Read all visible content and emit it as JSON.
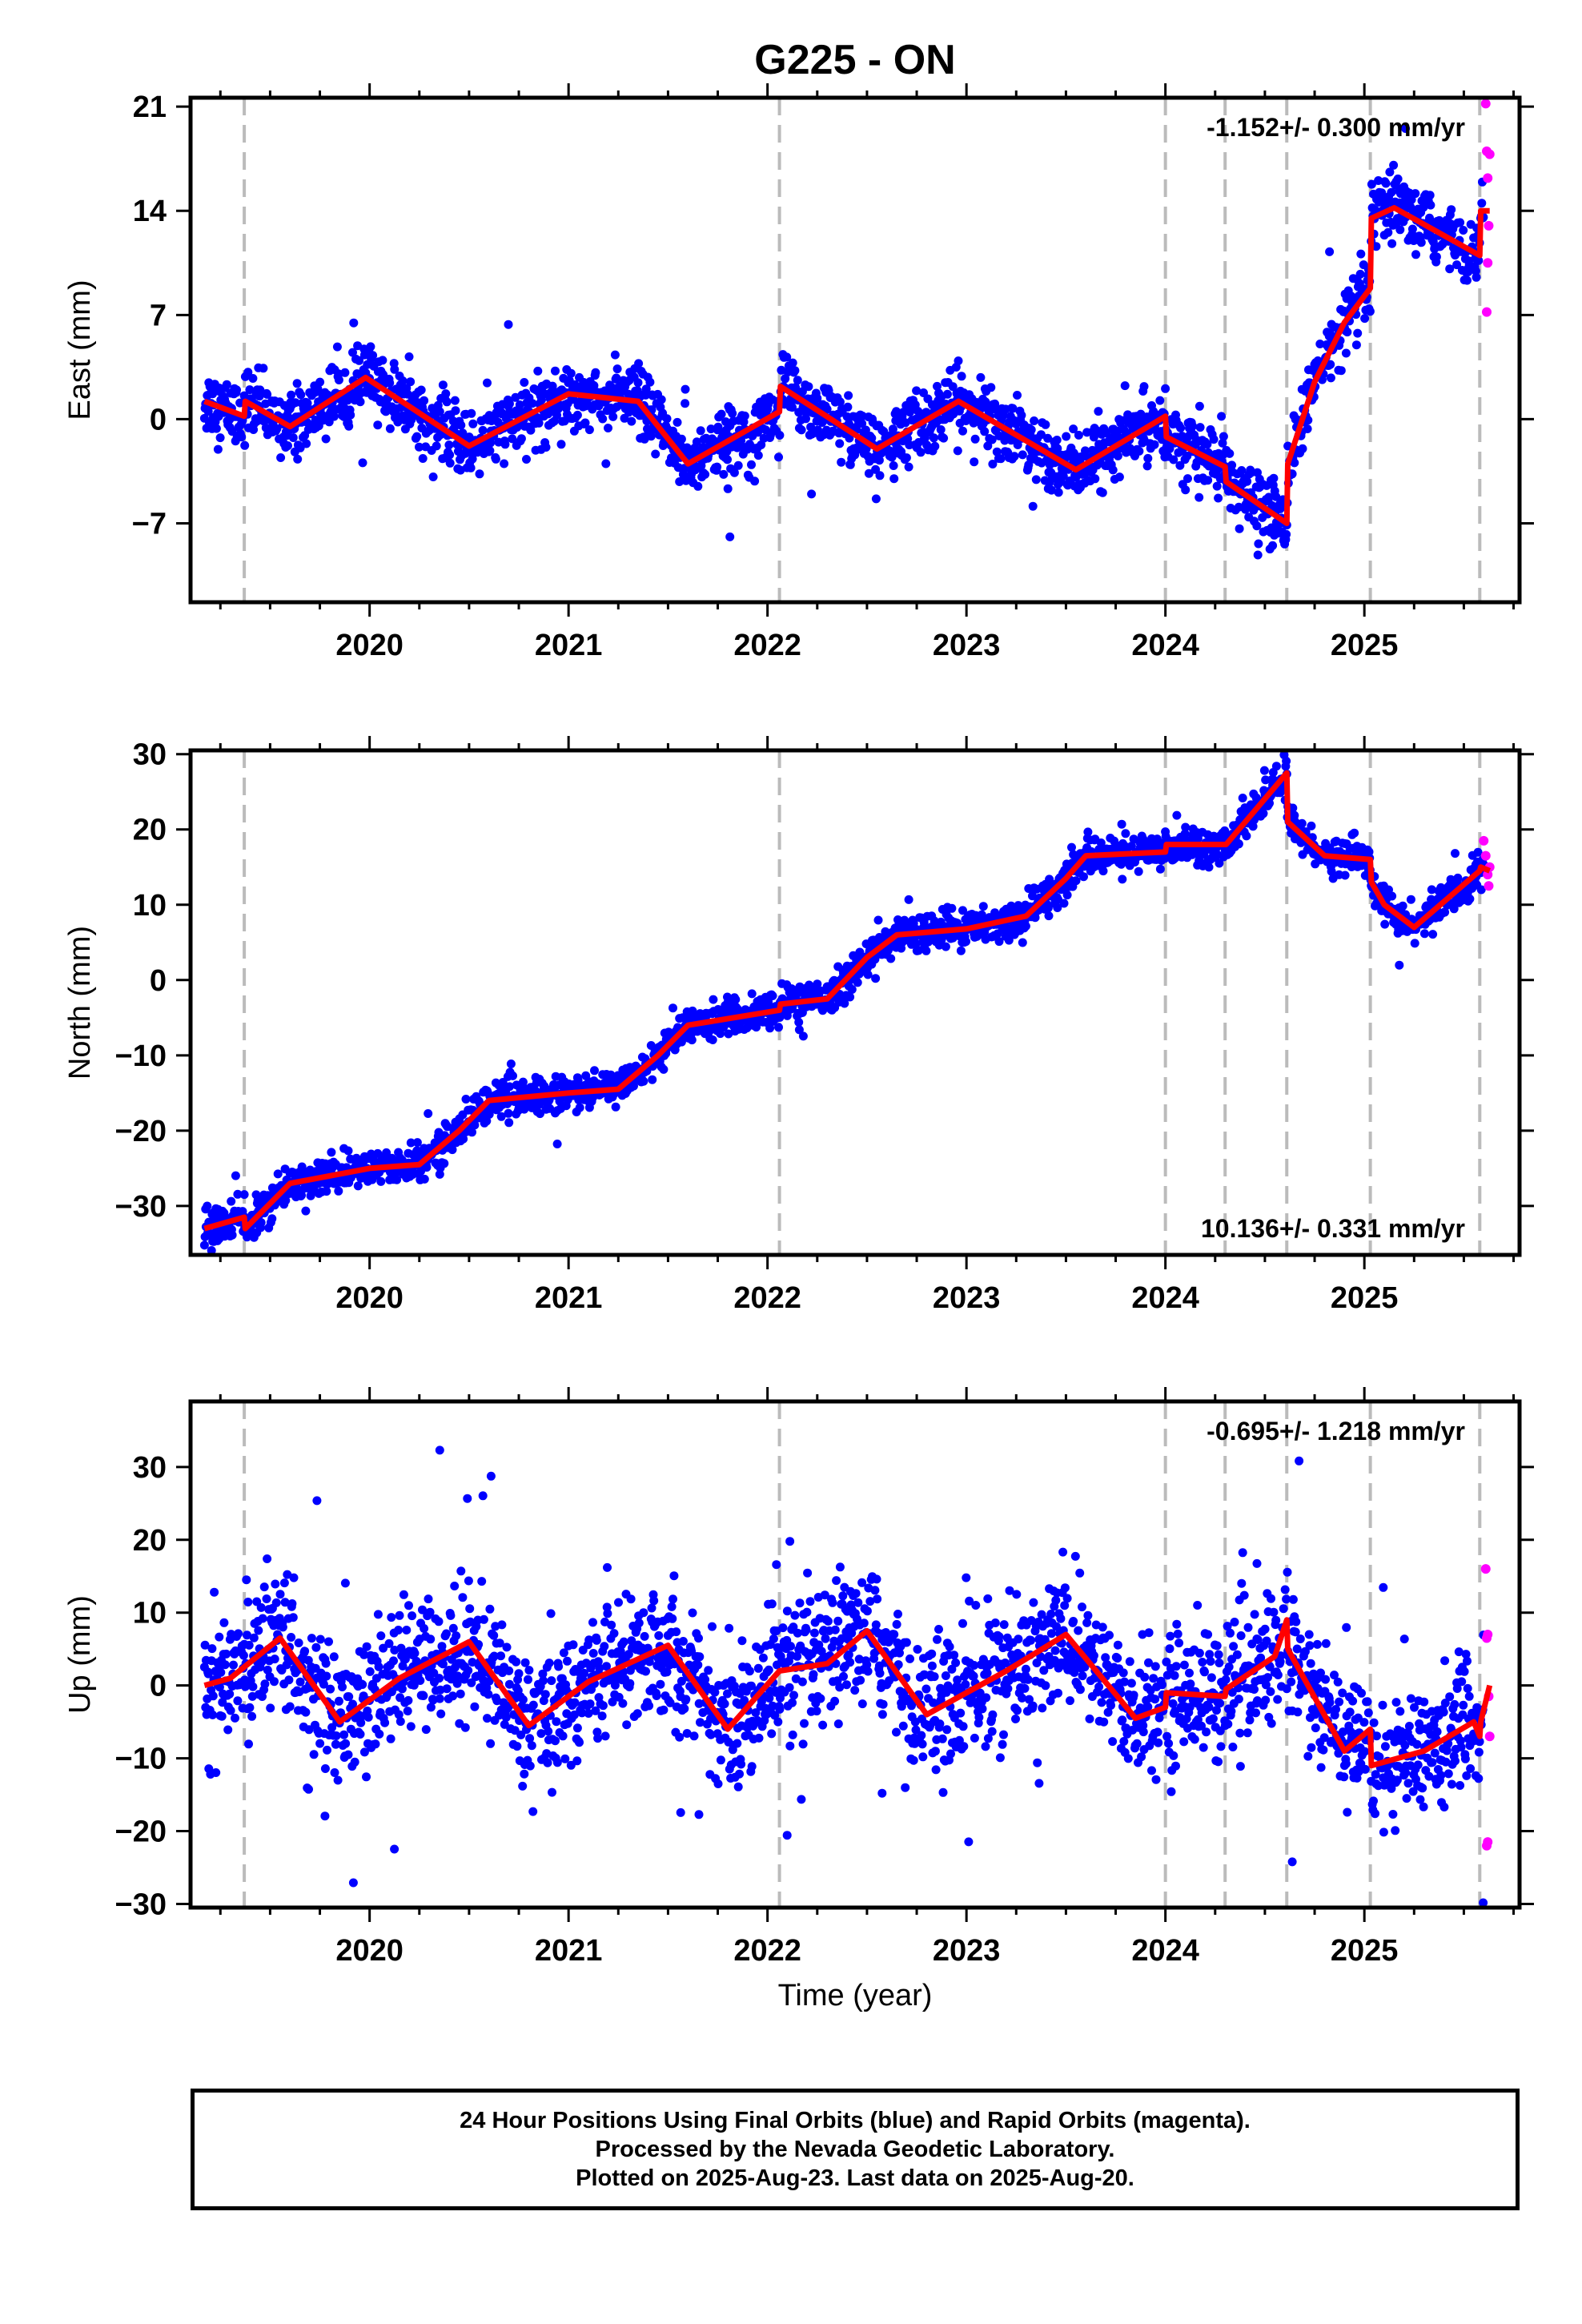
{
  "title": "G225 - ON",
  "xlabel": "Time (year)",
  "colors": {
    "final_orbits": "#0000ff",
    "rapid_orbits": "#ff00ff",
    "model": "#ff0000",
    "event_lines": "#bbbbbb"
  },
  "footer": {
    "line1": "24 Hour Positions Using Final Orbits (blue) and Rapid Orbits (magenta).",
    "line2": "Processed by the Nevada Geodetic Laboratory.",
    "line3": "Plotted on 2025-Aug-23. Last data on 2025-Aug-20."
  },
  "chart_data": [
    {
      "type": "scatter",
      "name": "east",
      "ylabel": "East (mm)",
      "rate_label": "-1.152+/- 0.300 mm/yr",
      "rate_position": "top-right",
      "xlim": [
        2019.1,
        2025.78
      ],
      "ylim": [
        -12.3,
        21.6
      ],
      "xticks": [
        2020,
        2021,
        2022,
        2023,
        2024,
        2025
      ],
      "yticks": [
        -7,
        0,
        7,
        14,
        21
      ],
      "event_lines": [
        2019.37,
        2022.06,
        2024.0,
        2024.3,
        2024.61,
        2025.03,
        2025.58
      ],
      "model_series": [
        [
          2019.17,
          1.2
        ],
        [
          2019.37,
          0.2
        ],
        [
          2019.375,
          1.2
        ],
        [
          2019.6,
          -0.5
        ],
        [
          2019.98,
          2.8
        ],
        [
          2020.5,
          -1.8
        ],
        [
          2021.0,
          1.7
        ],
        [
          2021.35,
          1.2
        ],
        [
          2021.6,
          -3.0
        ],
        [
          2022.06,
          0.5
        ],
        [
          2022.065,
          2.2
        ],
        [
          2022.55,
          -2.0
        ],
        [
          2022.96,
          1.2
        ],
        [
          2023.55,
          -3.4
        ],
        [
          2024.0,
          0.2
        ],
        [
          2024.005,
          -1.2
        ],
        [
          2024.3,
          -3.2
        ],
        [
          2024.305,
          -4.2
        ],
        [
          2024.61,
          -7.0
        ],
        [
          2024.615,
          -3.0
        ],
        [
          2024.75,
          2.5
        ],
        [
          2024.9,
          6.5
        ],
        [
          2025.03,
          8.8
        ],
        [
          2025.035,
          13.5
        ],
        [
          2025.15,
          14.2
        ],
        [
          2025.58,
          11.0
        ],
        [
          2025.585,
          14.0
        ],
        [
          2025.63,
          14.0
        ]
      ],
      "rapid_points": [
        [
          2025.61,
          21.2
        ],
        [
          2025.615,
          18.0
        ],
        [
          2025.62,
          16.2
        ],
        [
          2025.625,
          13.0
        ],
        [
          2025.62,
          10.5
        ],
        [
          2025.615,
          7.2
        ],
        [
          2025.63,
          17.8
        ]
      ],
      "noise_mm": 1.1,
      "outlier_count": 10
    },
    {
      "type": "scatter",
      "name": "north",
      "ylabel": "North (mm)",
      "rate_label": "10.136+/- 0.331 mm/yr",
      "rate_position": "bottom-right",
      "xlim": [
        2019.1,
        2025.78
      ],
      "ylim": [
        -36.5,
        30.5
      ],
      "xticks": [
        2020,
        2021,
        2022,
        2023,
        2024,
        2025
      ],
      "yticks": [
        -30,
        -20,
        -10,
        0,
        10,
        20,
        30
      ],
      "event_lines": [
        2019.37,
        2022.06,
        2024.0,
        2024.3,
        2024.61,
        2025.03,
        2025.58
      ],
      "model_series": [
        [
          2019.17,
          -33.0
        ],
        [
          2019.37,
          -31.5
        ],
        [
          2019.375,
          -33.0
        ],
        [
          2019.6,
          -27.0
        ],
        [
          2019.8,
          -26.0
        ],
        [
          2020.0,
          -25.0
        ],
        [
          2020.25,
          -24.5
        ],
        [
          2020.45,
          -20.0
        ],
        [
          2020.6,
          -16.0
        ],
        [
          2021.0,
          -15.0
        ],
        [
          2021.25,
          -14.5
        ],
        [
          2021.45,
          -10.0
        ],
        [
          2021.6,
          -6.0
        ],
        [
          2022.06,
          -4.0
        ],
        [
          2022.065,
          -3.2
        ],
        [
          2022.3,
          -2.5
        ],
        [
          2022.5,
          3.0
        ],
        [
          2022.65,
          6.0
        ],
        [
          2023.0,
          6.8
        ],
        [
          2023.3,
          8.5
        ],
        [
          2023.5,
          13.5
        ],
        [
          2023.6,
          16.5
        ],
        [
          2024.0,
          17.0
        ],
        [
          2024.005,
          18.0
        ],
        [
          2024.3,
          18.0
        ],
        [
          2024.305,
          18.0
        ],
        [
          2024.61,
          27.5
        ],
        [
          2024.615,
          21.0
        ],
        [
          2024.8,
          16.5
        ],
        [
          2025.03,
          16.0
        ],
        [
          2025.035,
          13.0
        ],
        [
          2025.1,
          10.0
        ],
        [
          2025.25,
          7.0
        ],
        [
          2025.58,
          14.5
        ],
        [
          2025.585,
          15.0
        ],
        [
          2025.63,
          14.5
        ]
      ],
      "rapid_points": [
        [
          2025.6,
          18.5
        ],
        [
          2025.61,
          16.5
        ],
        [
          2025.62,
          14.0
        ],
        [
          2025.625,
          12.5
        ],
        [
          2025.63,
          15.0
        ]
      ],
      "noise_mm": 1.2,
      "outlier_count": 6
    },
    {
      "type": "scatter",
      "name": "up",
      "ylabel": "Up (mm)",
      "rate_label": "-0.695+/- 1.218 mm/yr",
      "rate_position": "top-right",
      "xlim": [
        2019.1,
        2025.78
      ],
      "ylim": [
        -30.5,
        39.0
      ],
      "xticks": [
        2020,
        2021,
        2022,
        2023,
        2024,
        2025
      ],
      "yticks": [
        -30,
        -20,
        -10,
        0,
        10,
        20,
        30
      ],
      "event_lines": [
        2019.37,
        2022.06,
        2024.0,
        2024.3,
        2024.61,
        2025.03,
        2025.58
      ],
      "model_series": [
        [
          2019.17,
          0.0
        ],
        [
          2019.3,
          1.0
        ],
        [
          2019.55,
          6.5
        ],
        [
          2019.85,
          -5.0
        ],
        [
          2020.15,
          1.0
        ],
        [
          2020.5,
          6.0
        ],
        [
          2020.8,
          -5.5
        ],
        [
          2021.1,
          0.5
        ],
        [
          2021.5,
          5.5
        ],
        [
          2021.8,
          -6.0
        ],
        [
          2022.06,
          2.0
        ],
        [
          2022.3,
          3.0
        ],
        [
          2022.5,
          7.5
        ],
        [
          2022.8,
          -4.0
        ],
        [
          2023.2,
          2.0
        ],
        [
          2023.5,
          7.0
        ],
        [
          2023.85,
          -4.5
        ],
        [
          2024.0,
          -3.0
        ],
        [
          2024.005,
          -1.0
        ],
        [
          2024.3,
          -1.5
        ],
        [
          2024.305,
          -0.5
        ],
        [
          2024.55,
          4.0
        ],
        [
          2024.61,
          9.0
        ],
        [
          2024.615,
          5.0
        ],
        [
          2024.9,
          -9.0
        ],
        [
          2025.03,
          -6.0
        ],
        [
          2025.035,
          -11.0
        ],
        [
          2025.3,
          -9.0
        ],
        [
          2025.55,
          -5.0
        ],
        [
          2025.58,
          -7.0
        ],
        [
          2025.585,
          -5.0
        ],
        [
          2025.63,
          0.0
        ]
      ],
      "rapid_points": [
        [
          2025.61,
          16.0
        ],
        [
          2025.615,
          6.5
        ],
        [
          2025.62,
          7.0
        ],
        [
          2025.625,
          -1.5
        ],
        [
          2025.63,
          -7.0
        ],
        [
          2025.62,
          -21.5
        ],
        [
          2025.615,
          -22.0
        ]
      ],
      "noise_mm": 4.5,
      "outlier_count": 30
    }
  ]
}
